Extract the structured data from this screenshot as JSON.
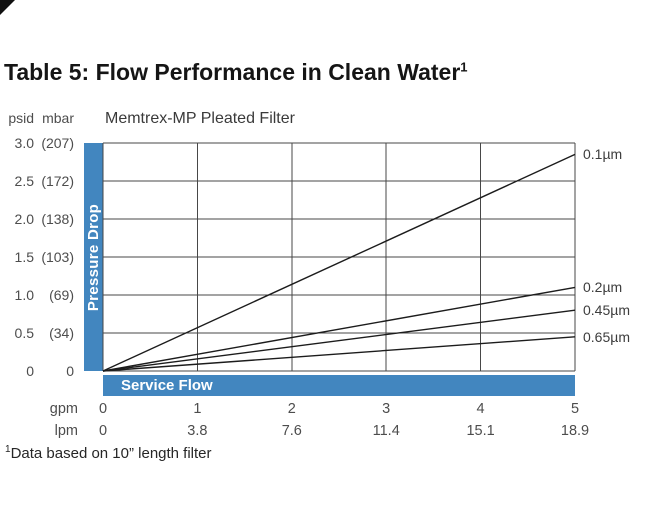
{
  "page": {
    "title": "Table 5: Flow Performance in Clean Water",
    "title_superscript": "1",
    "footnote_superscript": "1",
    "footnote": "Data based on 10” length filter"
  },
  "chart_data": {
    "type": "line",
    "title": "Memtrex-MP Pleated Filter",
    "legend_position": "right",
    "grid": true,
    "y_axis": {
      "label": "Pressure Drop",
      "units": [
        "psid",
        "mbar"
      ],
      "range": [
        0,
        3
      ],
      "ticks": [
        {
          "psid": "3.0",
          "mbar": "(207)"
        },
        {
          "psid": "2.5",
          "mbar": "(172)"
        },
        {
          "psid": "2.0",
          "mbar": "(138)"
        },
        {
          "psid": "1.5",
          "mbar": "(103)"
        },
        {
          "psid": "1.0",
          "mbar": "(69)"
        },
        {
          "psid": "0.5",
          "mbar": "(34)"
        },
        {
          "psid": "0",
          "mbar": "0"
        }
      ]
    },
    "x_axis": {
      "label": "Service Flow",
      "units": [
        "gpm",
        "lpm"
      ],
      "range": [
        0,
        5
      ],
      "gpm_ticks": [
        "0",
        "1",
        "2",
        "3",
        "4",
        "5"
      ],
      "lpm_ticks": [
        "0",
        "3.8",
        "7.6",
        "11.4",
        "15.1",
        "18.9"
      ]
    },
    "series": [
      {
        "name": "0.1µm",
        "points": [
          [
            0,
            0
          ],
          [
            5,
            2.85
          ]
        ]
      },
      {
        "name": "0.2µm",
        "points": [
          [
            0,
            0
          ],
          [
            5,
            1.1
          ]
        ]
      },
      {
        "name": "0.45µm",
        "points": [
          [
            0,
            0
          ],
          [
            5,
            0.8
          ]
        ]
      },
      {
        "name": "0.65µm",
        "points": [
          [
            0,
            0
          ],
          [
            5,
            0.45
          ]
        ]
      }
    ],
    "colors": {
      "accent_blue": "#4286bf",
      "line": "#1c1c1c",
      "grid": "#474747"
    }
  }
}
